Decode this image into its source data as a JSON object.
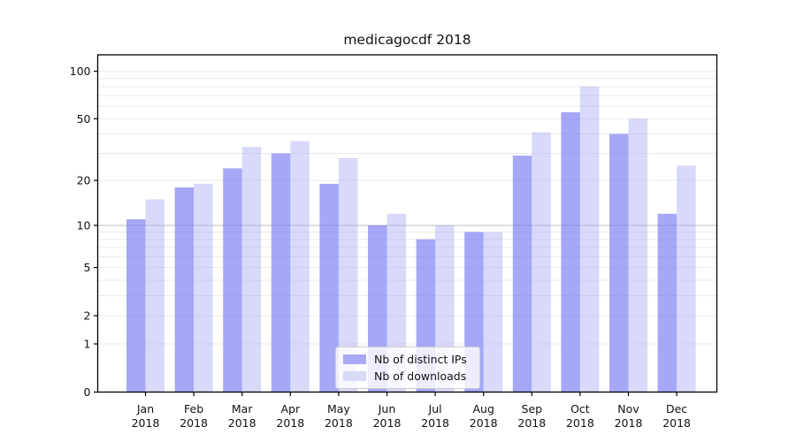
{
  "chart_data": {
    "type": "bar",
    "title": "medicagocdf 2018",
    "categories": [
      "Jan",
      "Feb",
      "Mar",
      "Apr",
      "May",
      "Jun",
      "Jul",
      "Aug",
      "Sep",
      "Oct",
      "Nov",
      "Dec"
    ],
    "year": "2018",
    "series": [
      {
        "name": "Nb of distinct IPs",
        "values": [
          11,
          18,
          24,
          30,
          19,
          10,
          8,
          9,
          29,
          55,
          40,
          12
        ],
        "fill": "rgba(116,116,244,0.63)",
        "swatch": "#a9a9f6"
      },
      {
        "name": "Nb of downloads",
        "values": [
          15,
          19,
          33,
          36,
          28,
          12,
          10,
          9,
          41,
          80,
          50,
          25
        ],
        "fill": "rgba(165,165,242,0.42)",
        "swatch": "#d9d9f8"
      }
    ],
    "yscale": "log(1+v)",
    "ylim": [
      0,
      127
    ],
    "yticks": [
      0,
      1,
      2,
      5,
      10,
      20,
      50,
      100
    ],
    "gridlines": [
      1,
      2,
      3,
      4,
      5,
      6,
      7,
      8,
      9,
      10,
      20,
      30,
      40,
      50,
      60,
      70,
      80,
      90,
      100
    ],
    "grid_emphasis_value": 10,
    "grid_color": "#ebebeb",
    "grid_emphasis_color": "#bdbdbd",
    "axis_color": "#000000",
    "tick_label_color": "#111111",
    "legend_position": "lower center"
  }
}
